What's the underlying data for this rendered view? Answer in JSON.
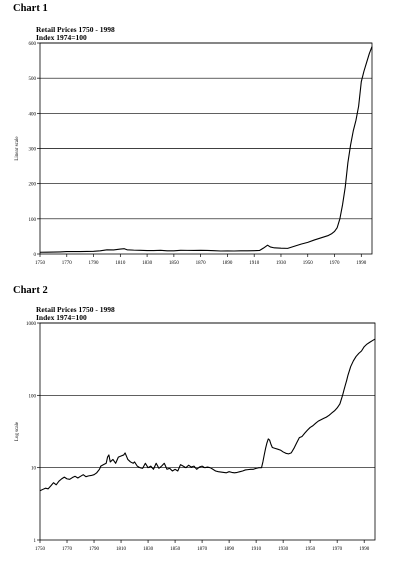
{
  "chart_data": [
    {
      "heading": "Chart 1",
      "type": "line",
      "title": "Retail Prices 1750 - 1998",
      "subtitle": "Index 1974=100",
      "ylabel": "Linear scale",
      "xlabel": "",
      "scale": "linear",
      "xlim": [
        1750,
        1998
      ],
      "ylim": [
        0,
        600
      ],
      "x_ticks": [
        1750,
        1770,
        1790,
        1810,
        1830,
        1850,
        1870,
        1890,
        1910,
        1930,
        1950,
        1970,
        1990
      ],
      "y_ticks": [
        0,
        100,
        200,
        300,
        400,
        500,
        600
      ],
      "grid": "horizontal",
      "series": [
        {
          "x": [
            1750,
            1755,
            1760,
            1765,
            1770,
            1775,
            1780,
            1785,
            1790,
            1795,
            1800,
            1805,
            1810,
            1813,
            1815,
            1820,
            1825,
            1830,
            1835,
            1840,
            1845,
            1850,
            1855,
            1860,
            1865,
            1870,
            1875,
            1880,
            1885,
            1890,
            1895,
            1900,
            1905,
            1910,
            1914,
            1917,
            1920,
            1922,
            1925,
            1930,
            1935,
            1940,
            1945,
            1950,
            1955,
            1960,
            1965,
            1968,
            1970,
            1972,
            1974,
            1976,
            1978,
            1980,
            1982,
            1984,
            1986,
            1988,
            1990,
            1992,
            1994,
            1996,
            1998
          ],
          "y": [
            5,
            5.2,
            5.5,
            6,
            6.8,
            7,
            7,
            7.2,
            7.5,
            9,
            12,
            11.5,
            14,
            15,
            12,
            11,
            10.5,
            9.8,
            9.8,
            10.5,
            9,
            9,
            10.5,
            10.3,
            10.2,
            10.5,
            10,
            9.5,
            8.5,
            8.8,
            8.5,
            9,
            9,
            9.5,
            10,
            17,
            25,
            20,
            17.5,
            16.5,
            16,
            22,
            28,
            33,
            40,
            46,
            52,
            58,
            64,
            75,
            100,
            140,
            190,
            260,
            310,
            350,
            380,
            420,
            490,
            520,
            545,
            570,
            590
          ]
        }
      ]
    },
    {
      "heading": "Chart 2",
      "type": "line",
      "title": "Retail Prices 1750 - 1998",
      "subtitle": "Index 1974=100",
      "ylabel": "Log scale",
      "xlabel": "",
      "scale": "log",
      "xlim": [
        1750,
        1998
      ],
      "ylim": [
        1,
        1000
      ],
      "x_ticks": [
        1750,
        1770,
        1790,
        1810,
        1830,
        1850,
        1870,
        1890,
        1910,
        1930,
        1950,
        1970,
        1990
      ],
      "y_ticks": [
        1,
        10,
        100,
        1000
      ],
      "grid": "horizontal",
      "series": [
        {
          "x": [
            1750,
            1752,
            1754,
            1756,
            1758,
            1760,
            1762,
            1764,
            1766,
            1768,
            1770,
            1772,
            1774,
            1776,
            1778,
            1780,
            1782,
            1784,
            1786,
            1788,
            1790,
            1792,
            1794,
            1795,
            1797,
            1799,
            1800,
            1801,
            1802,
            1804,
            1806,
            1808,
            1810,
            1812,
            1813,
            1815,
            1817,
            1819,
            1820,
            1822,
            1824,
            1826,
            1828,
            1830,
            1832,
            1834,
            1836,
            1838,
            1840,
            1842,
            1844,
            1846,
            1848,
            1850,
            1852,
            1854,
            1856,
            1858,
            1860,
            1862,
            1864,
            1866,
            1868,
            1870,
            1872,
            1874,
            1876,
            1878,
            1880,
            1882,
            1884,
            1886,
            1888,
            1890,
            1892,
            1894,
            1896,
            1898,
            1900,
            1902,
            1904,
            1906,
            1908,
            1910,
            1912,
            1914,
            1915,
            1916,
            1917,
            1918,
            1919,
            1920,
            1921,
            1922,
            1924,
            1926,
            1928,
            1930,
            1932,
            1934,
            1936,
            1938,
            1940,
            1942,
            1944,
            1946,
            1948,
            1950,
            1952,
            1954,
            1956,
            1958,
            1960,
            1962,
            1964,
            1966,
            1968,
            1970,
            1972,
            1974,
            1975,
            1976,
            1977,
            1978,
            1980,
            1982,
            1984,
            1986,
            1988,
            1990,
            1992,
            1994,
            1996,
            1998
          ],
          "y": [
            4.8,
            5,
            5.2,
            5.1,
            5.6,
            6.2,
            5.8,
            6.5,
            7.0,
            7.4,
            7.0,
            6.9,
            7.3,
            7.6,
            7.2,
            7.6,
            8.0,
            7.5,
            7.7,
            7.8,
            8.0,
            8.5,
            9.5,
            10.5,
            11.0,
            11.5,
            14.0,
            15.0,
            12.0,
            13.0,
            11.5,
            14.0,
            14.5,
            15.0,
            16.0,
            13.0,
            12.0,
            11.5,
            12.0,
            10.5,
            10.0,
            9.8,
            11.5,
            10.0,
            10.5,
            9.5,
            11.5,
            9.8,
            10.5,
            11.5,
            9.5,
            9.8,
            9.0,
            9.5,
            9.0,
            11.0,
            10.5,
            10.0,
            10.8,
            10.2,
            10.5,
            9.5,
            10.2,
            10.5,
            10.0,
            10.2,
            10.0,
            9.5,
            9.0,
            8.8,
            8.7,
            8.6,
            8.5,
            8.8,
            8.6,
            8.5,
            8.6,
            8.8,
            9.0,
            9.3,
            9.4,
            9.5,
            9.5,
            9.8,
            10.0,
            10.0,
            12.0,
            15.0,
            18.5,
            22.0,
            25.0,
            24.0,
            21.0,
            19.0,
            18.5,
            18.0,
            17.5,
            16.5,
            15.8,
            15.5,
            16.0,
            18.5,
            22.0,
            26.0,
            27.0,
            30.0,
            33.0,
            36.0,
            38.0,
            41.0,
            44.0,
            46.0,
            48.0,
            50.0,
            53.0,
            57.0,
            61.0,
            67.0,
            76.0,
            100.0,
            118.0,
            138.0,
            160.0,
            190.0,
            250.0,
            300.0,
            345.0,
            380.0,
            410.0,
            470.0,
            510.0,
            540.0,
            570.0,
            600.0
          ]
        }
      ]
    }
  ]
}
